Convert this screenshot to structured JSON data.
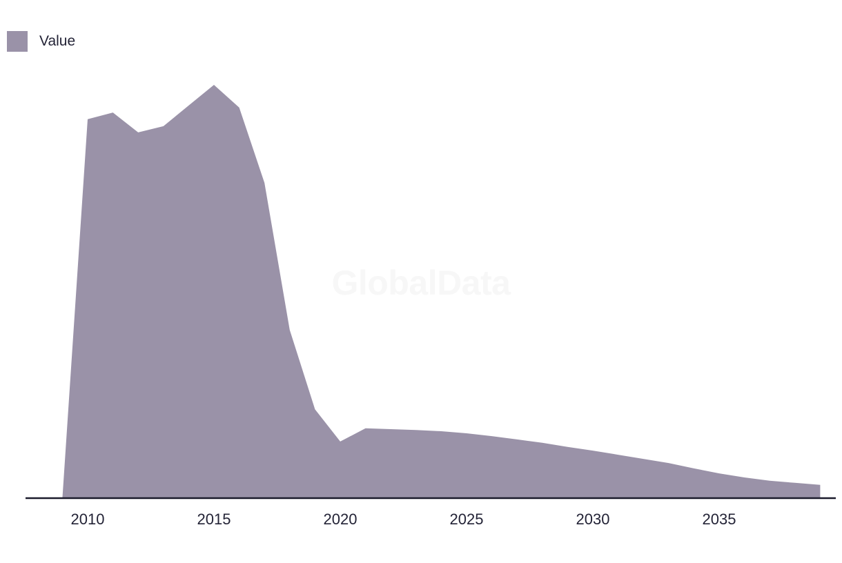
{
  "watermark": "GlobalData",
  "legend": {
    "label": "Value",
    "swatch_color": "#9a92a8"
  },
  "colors": {
    "background": "#ffffff",
    "area_fill": "#9a92a8",
    "axis_line": "#1a1a2b",
    "tick_text": "#232336",
    "watermark_text": "#f7f7f7"
  },
  "chart_data": {
    "type": "area",
    "title": "",
    "xlabel": "",
    "ylabel": "",
    "grid": false,
    "legend_position": "top-left",
    "y_axis_shown": false,
    "y_units": "relative index (y-axis unlabeled in source; peak 2015 = 100)",
    "x": [
      2009,
      2010,
      2011,
      2012,
      2013,
      2014,
      2015,
      2016,
      2017,
      2018,
      2019,
      2020,
      2021,
      2022,
      2023,
      2024,
      2025,
      2026,
      2027,
      2028,
      2029,
      2030,
      2031,
      2032,
      2033,
      2034,
      2035,
      2036,
      2037,
      2038,
      2039
    ],
    "series": [
      {
        "name": "Value",
        "color": "#9a92a8",
        "values": [
          0,
          91.7,
          93.3,
          88.5,
          90.0,
          95.0,
          100,
          94.5,
          76.3,
          40.7,
          21.5,
          13.7,
          16.9,
          16.7,
          16.5,
          16.2,
          15.7,
          15.0,
          14.2,
          13.4,
          12.4,
          11.5,
          10.5,
          9.5,
          8.5,
          7.2,
          6.0,
          5.0,
          4.2,
          3.7,
          3.2
        ]
      }
    ],
    "xlim": [
      2008.5,
      2040
    ],
    "ylim": [
      0,
      105
    ],
    "x_ticks": [
      2010,
      2015,
      2020,
      2025,
      2030,
      2035
    ],
    "x_tick_labels": [
      "2010",
      "2015",
      "2020",
      "2025",
      "2030",
      "2035"
    ]
  }
}
